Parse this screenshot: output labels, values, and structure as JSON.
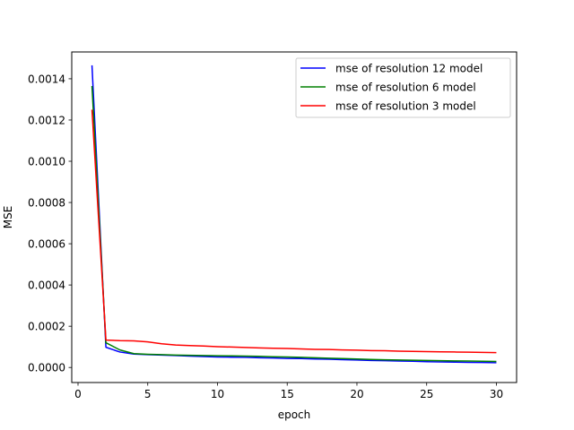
{
  "chart_data": {
    "type": "line",
    "xlabel": "epoch",
    "ylabel": "MSE",
    "xlim": [
      -0.45,
      31.45
    ],
    "ylim": [
      -7.3e-05,
      0.00153
    ],
    "x_ticks": [
      0,
      5,
      10,
      15,
      20,
      25,
      30
    ],
    "x_tick_labels": [
      "0",
      "5",
      "10",
      "15",
      "20",
      "25",
      "30"
    ],
    "y_ticks": [
      0,
      0.0002,
      0.0004,
      0.0006,
      0.0008,
      0.001,
      0.0012,
      0.0014
    ],
    "y_tick_labels": [
      "0.0000",
      "0.0002",
      "0.0004",
      "0.0006",
      "0.0008",
      "0.0010",
      "0.0012",
      "0.0014"
    ],
    "grid": false,
    "legend_position": "upper right",
    "x": [
      1,
      2,
      3,
      4,
      5,
      6,
      7,
      8,
      9,
      10,
      11,
      12,
      13,
      14,
      15,
      16,
      17,
      18,
      19,
      20,
      21,
      22,
      23,
      24,
      25,
      26,
      27,
      28,
      29,
      30
    ],
    "series": [
      {
        "name": "mse of resolution 12 model",
        "color": "#0000ff",
        "values": [
          0.001465,
          9.8e-05,
          7.5e-05,
          6.5e-05,
          6.2e-05,
          6e-05,
          5.8e-05,
          5.5e-05,
          5.3e-05,
          5.1e-05,
          5e-05,
          4.9e-05,
          4.7e-05,
          4.6e-05,
          4.4e-05,
          4.3e-05,
          4.1e-05,
          4e-05,
          3.8e-05,
          3.6e-05,
          3.4e-05,
          3.3e-05,
          3.1e-05,
          3e-05,
          2.8e-05,
          2.7e-05,
          2.6e-05,
          2.5e-05,
          2.4e-05,
          2.3e-05
        ]
      },
      {
        "name": "mse of resolution 6 model",
        "color": "#008000",
        "values": [
          0.001365,
          0.00012,
          8.5e-05,
          6.7e-05,
          6.4e-05,
          6.2e-05,
          6e-05,
          5.9e-05,
          5.8e-05,
          5.7e-05,
          5.6e-05,
          5.5e-05,
          5.4e-05,
          5.2e-05,
          5.1e-05,
          4.9e-05,
          4.7e-05,
          4.5e-05,
          4.3e-05,
          4.1e-05,
          3.9e-05,
          3.7e-05,
          3.6e-05,
          3.5e-05,
          3.4e-05,
          3.3e-05,
          3.2e-05,
          3.1e-05,
          3e-05,
          2.9e-05
        ]
      },
      {
        "name": "mse of resolution 3 model",
        "color": "#ff0000",
        "values": [
          0.00125,
          0.000133,
          0.00013,
          0.000129,
          0.000124,
          0.000115,
          0.000109,
          0.000106,
          0.000104,
          0.000101,
          9.9e-05,
          9.7e-05,
          9.5e-05,
          9.3e-05,
          9.2e-05,
          9e-05,
          8.8e-05,
          8.7e-05,
          8.5e-05,
          8.4e-05,
          8.2e-05,
          8.1e-05,
          7.9e-05,
          7.8e-05,
          7.7e-05,
          7.6e-05,
          7.5e-05,
          7.4e-05,
          7.3e-05,
          7.2e-05
        ]
      }
    ]
  }
}
